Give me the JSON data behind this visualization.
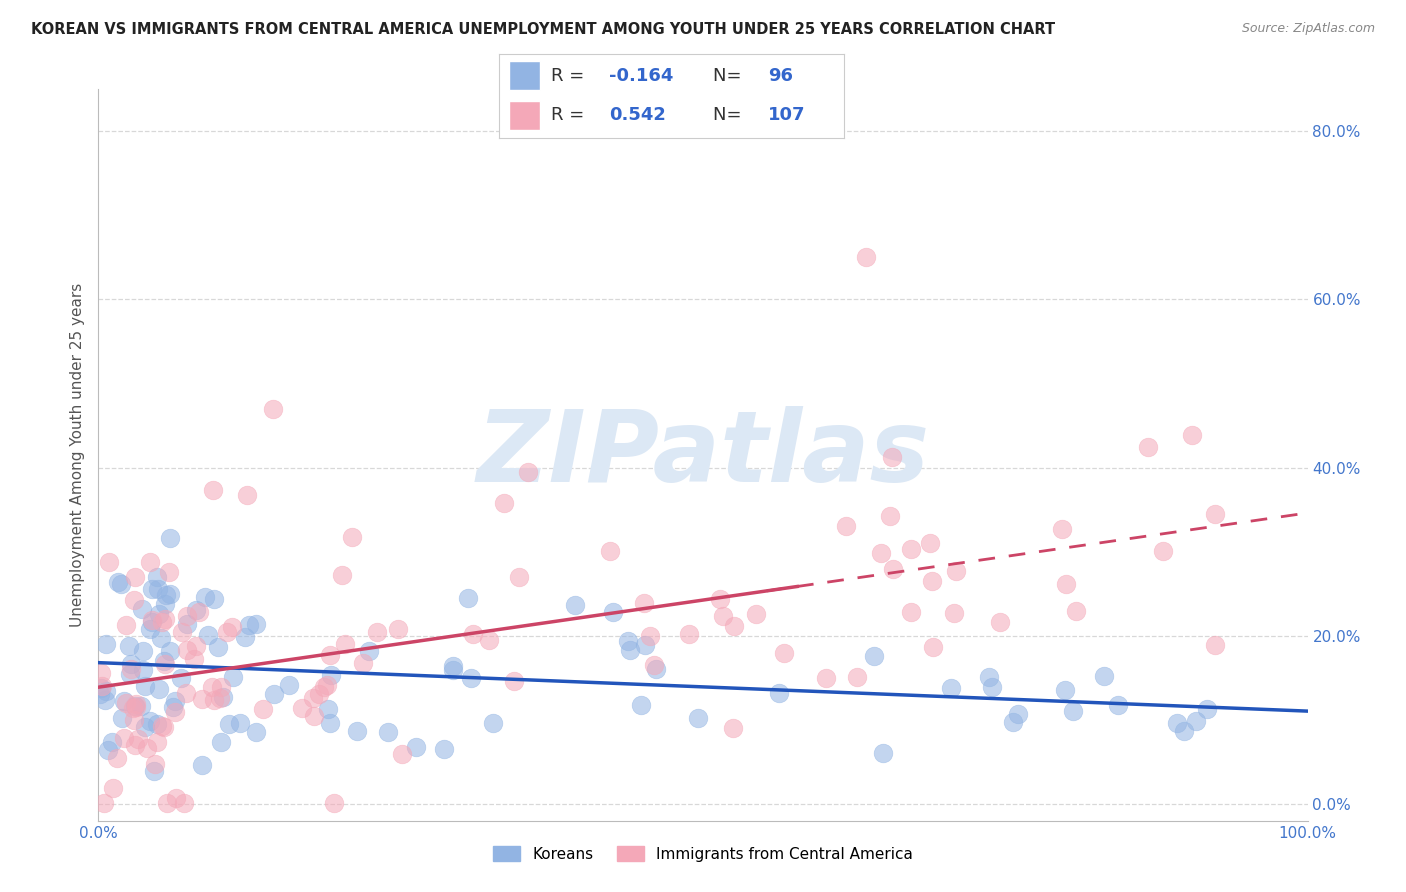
{
  "title": "KOREAN VS IMMIGRANTS FROM CENTRAL AMERICA UNEMPLOYMENT AMONG YOUTH UNDER 25 YEARS CORRELATION CHART",
  "source": "Source: ZipAtlas.com",
  "ylabel": "Unemployment Among Youth under 25 years",
  "xlim": [
    0.0,
    1.0
  ],
  "ylim": [
    -0.02,
    0.85
  ],
  "yticks": [
    0.0,
    0.2,
    0.4,
    0.6,
    0.8
  ],
  "ytick_labels": [
    "0.0%",
    "20.0%",
    "40.0%",
    "60.0%",
    "80.0%"
  ],
  "xtick_labels_right": [
    "0.0%",
    "100.0%"
  ],
  "xtick_pos_right": [
    0.0,
    1.0
  ],
  "korean_R": -0.164,
  "korean_N": 96,
  "ca_R": 0.542,
  "ca_N": 107,
  "blue_color": "#92b4e3",
  "pink_color": "#f4a8b8",
  "blue_line_color": "#2255bb",
  "pink_line_color": "#cc4466",
  "watermark": "ZIPatlas",
  "watermark_color": "#dce8f5",
  "legend_label_korean": "Koreans",
  "legend_label_ca": "Immigrants from Central America",
  "background_color": "#ffffff",
  "grid_color": "#d8d8d8",
  "tick_color": "#4477cc",
  "title_color": "#222222",
  "source_color": "#888888"
}
